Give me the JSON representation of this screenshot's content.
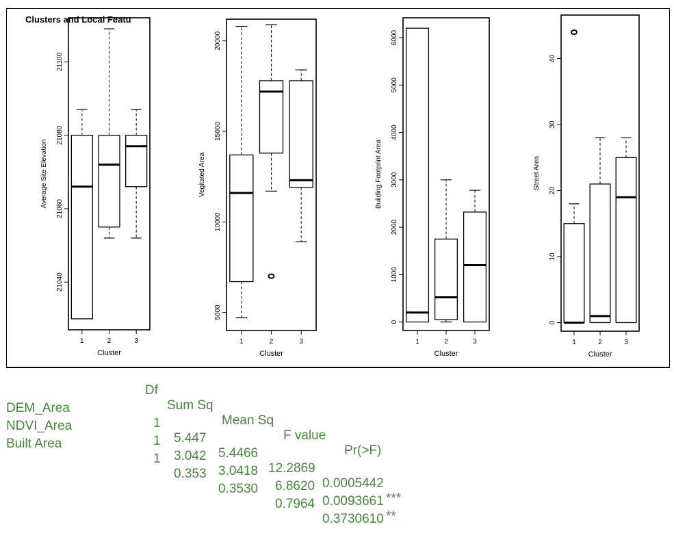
{
  "figure": {
    "title": "Clusters and Local Featu",
    "xlabel": "Cluster"
  },
  "chart_data": [
    {
      "type": "boxplot",
      "ylabel": "Average Site Elevation",
      "ylim": [
        21027,
        21112
      ],
      "yticks": [
        21040,
        21060,
        21080,
        21100
      ],
      "categories": [
        "1",
        "2",
        "3"
      ],
      "boxes": [
        {
          "min": 21030,
          "q1": 21030,
          "median": 21066,
          "q3": 21080,
          "max": 21087,
          "outliers": []
        },
        {
          "min": 21052,
          "q1": 21055,
          "median": 21072,
          "q3": 21080,
          "max": 21109,
          "outliers": []
        },
        {
          "min": 21052,
          "q1": 21066,
          "median": 21077,
          "q3": 21080,
          "max": 21087,
          "outliers": []
        }
      ]
    },
    {
      "type": "boxplot",
      "ylabel": "Vegitated Area",
      "ylim": [
        4000,
        21200
      ],
      "yticks": [
        5000,
        10000,
        15000,
        20000
      ],
      "categories": [
        "1",
        "2",
        "3"
      ],
      "boxes": [
        {
          "min": 4700,
          "q1": 6700,
          "median": 11600,
          "q3": 13700,
          "max": 20800,
          "outliers": []
        },
        {
          "min": 11700,
          "q1": 13800,
          "median": 17200,
          "q3": 17800,
          "max": 20900,
          "outliers": [
            7000
          ]
        },
        {
          "min": 8900,
          "q1": 11900,
          "median": 12300,
          "q3": 17800,
          "max": 18400,
          "outliers": []
        }
      ]
    },
    {
      "type": "boxplot",
      "ylabel": "Building Footprint Area",
      "ylim": [
        -180,
        6420
      ],
      "yticks": [
        0,
        1000,
        2000,
        3000,
        4000,
        5000,
        6000
      ],
      "categories": [
        "1",
        "2",
        "3"
      ],
      "boxes": [
        {
          "min": 0,
          "q1": 0,
          "median": 200,
          "q3": 6200,
          "max": 6200,
          "outliers": []
        },
        {
          "min": 0,
          "q1": 50,
          "median": 520,
          "q3": 1750,
          "max": 3000,
          "outliers": []
        },
        {
          "min": 0,
          "q1": 0,
          "median": 1200,
          "q3": 2320,
          "max": 2780,
          "outliers": []
        }
      ]
    },
    {
      "type": "boxplot",
      "ylabel": "Street Area",
      "ylim": [
        -1.3,
        46.6
      ],
      "yticks": [
        0,
        10,
        20,
        30,
        40
      ],
      "categories": [
        "1",
        "2",
        "3"
      ],
      "boxes": [
        {
          "min": 0,
          "q1": 0,
          "median": 0,
          "q3": 15,
          "max": 18,
          "outliers": [
            44
          ]
        },
        {
          "min": 0,
          "q1": 0,
          "median": 1,
          "q3": 21,
          "max": 28,
          "outliers": []
        },
        {
          "min": 0,
          "q1": 0,
          "median": 19,
          "q3": 25,
          "max": 28,
          "outliers": []
        }
      ]
    }
  ],
  "anova": {
    "color": "#44893a",
    "header": [
      "Df",
      "Sum Sq",
      "Mean Sq",
      "F value",
      "Pr(>F)"
    ],
    "rows": [
      {
        "term": "DEM_Area",
        "df": "1",
        "sumsq": "5.447",
        "meansq": "5.4466",
        "fvalue": "12.2869",
        "p": "0.0005442",
        "sig": "***"
      },
      {
        "term": "NDVI_Area",
        "df": "1",
        "sumsq": "3.042",
        "meansq": "3.0418",
        "fvalue": "6.8620",
        "p": "0.0093661",
        "sig": "**"
      },
      {
        "term": "Built Area",
        "df": "1",
        "sumsq": "0.353",
        "meansq": "0.3530",
        "fvalue": "0.7964",
        "p": "0.3730610",
        "sig": ""
      }
    ]
  }
}
